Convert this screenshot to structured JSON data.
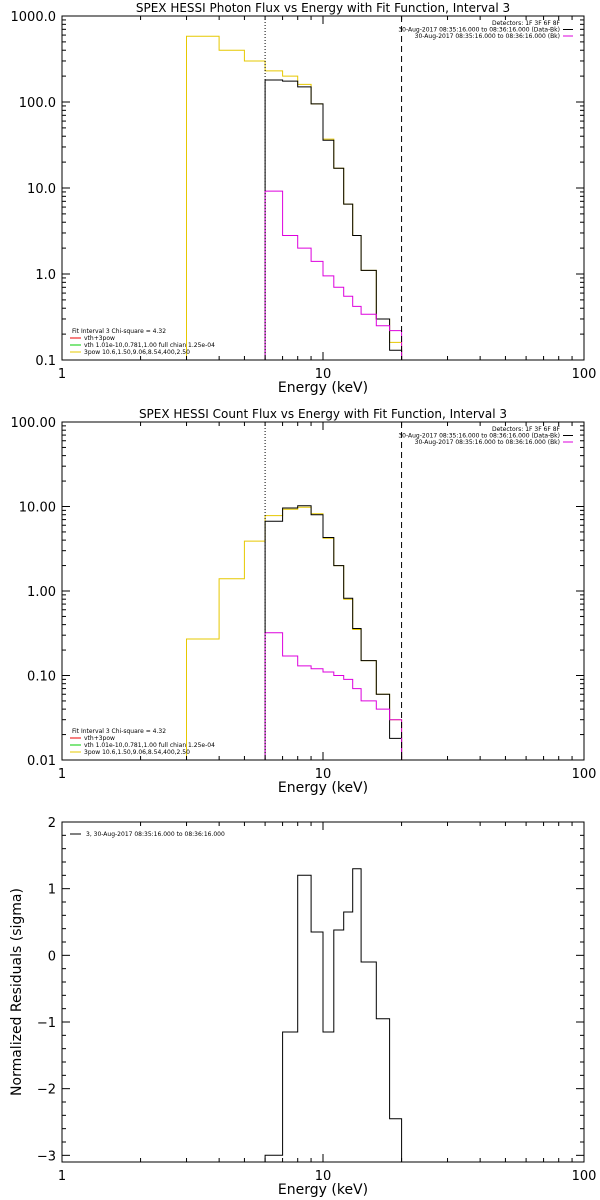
{
  "chart_data": [
    {
      "type": "line",
      "title": "SPEX HESSI Photon Flux vs Energy with Fit Function, Interval 3",
      "xlabel": "Energy (keV)",
      "ylabel": "",
      "xscale": "log",
      "yscale": "log",
      "xlim": [
        1,
        100
      ],
      "ylim": [
        0.1,
        1000
      ],
      "x_ticks": [
        1,
        10,
        100
      ],
      "x_tick_labels": [
        "1",
        "10",
        "100"
      ],
      "y_ticks": [
        0.1,
        1,
        10,
        100,
        1000
      ],
      "y_tick_labels": [
        "0.1",
        "1.0",
        "10.0",
        "100.0",
        "1000.0"
      ],
      "vlines": [
        {
          "x": 6,
          "style": "dotted"
        },
        {
          "x": 20,
          "style": "dashed"
        }
      ],
      "legend_top_right": [
        {
          "text": "Detectors: 1F 3F 6F 8F",
          "color": ""
        },
        {
          "text": "30-Aug-2017 08:35:16.000 to 08:36:16.000 (Data-Bk)",
          "color": "#000000"
        },
        {
          "text": "30-Aug-2017 08:35:16.000 to 08:36:16.000 (Bk)",
          "color": "#dd00dd"
        }
      ],
      "legend_bottom_left": [
        {
          "text": "Fit Interval 3   Chi-square = 4.32",
          "color": ""
        },
        {
          "text": "vth+3pow",
          "color": "#ee0000"
        },
        {
          "text": "vth 1.01e-10,0.781,1.00  full chian 1.25e-04",
          "color": "#00cc00"
        },
        {
          "text": "3pow 10.6,1.50,9.06,8.54,400,2.50",
          "color": "#e6c800"
        }
      ],
      "series": [
        {
          "color": "#e6c800",
          "edges": [
            3,
            4,
            5,
            6,
            7,
            8,
            9,
            10,
            11,
            12,
            13,
            14,
            16,
            18,
            20
          ],
          "values": [
            580,
            400,
            300,
            230,
            200,
            160,
            95,
            37,
            17,
            6.5,
            2.8,
            1.1,
            0.3,
            0.16
          ]
        },
        {
          "color": "#000000",
          "edges": [
            6,
            7,
            8,
            9,
            10,
            11,
            12,
            13,
            14,
            16,
            18,
            20
          ],
          "values": [
            180,
            175,
            150,
            95,
            36,
            17,
            6.5,
            2.8,
            1.1,
            0.3,
            0.13
          ]
        },
        {
          "color": "#dd00dd",
          "edges": [
            6,
            7,
            8,
            9,
            10,
            11,
            12,
            13,
            14,
            16,
            18,
            20
          ],
          "values": [
            9.2,
            2.8,
            2.0,
            1.4,
            0.95,
            0.7,
            0.55,
            0.42,
            0.34,
            0.25,
            0.22
          ]
        }
      ]
    },
    {
      "type": "line",
      "title": "SPEX HESSI Count Flux vs Energy with Fit Function, Interval 3",
      "xlabel": "Energy (keV)",
      "ylabel": "",
      "xscale": "log",
      "yscale": "log",
      "xlim": [
        1,
        100
      ],
      "ylim": [
        0.01,
        100
      ],
      "x_ticks": [
        1,
        10,
        100
      ],
      "x_tick_labels": [
        "1",
        "10",
        "100"
      ],
      "y_ticks": [
        0.01,
        0.1,
        1,
        10,
        100
      ],
      "y_tick_labels": [
        "0.01",
        "0.10",
        "1.00",
        "10.00",
        "100.00"
      ],
      "vlines": [
        {
          "x": 6,
          "style": "dotted"
        },
        {
          "x": 20,
          "style": "dashed"
        }
      ],
      "legend_top_right": [
        {
          "text": "Detectors: 1F 3F 6F 8F",
          "color": ""
        },
        {
          "text": "30-Aug-2017 08:35:16.000 to 08:36:16.000 (Data-Bk)",
          "color": "#000000"
        },
        {
          "text": "30-Aug-2017 08:35:16.000 to 08:36:16.000 (Bk)",
          "color": "#dd00dd"
        }
      ],
      "legend_bottom_left": [
        {
          "text": "Fit Interval 3   Chi-square = 4.32",
          "color": ""
        },
        {
          "text": "vth+3pow",
          "color": "#ee0000"
        },
        {
          "text": "vth 1.01e-10,0.781,1.00  full chian 1.25e-04",
          "color": "#00cc00"
        },
        {
          "text": "3pow 10.6,1.50,9.06,8.54,400,2.50",
          "color": "#e6c800"
        }
      ],
      "series": [
        {
          "color": "#e6c800",
          "edges": [
            3,
            4,
            5,
            6,
            7,
            8,
            9,
            10,
            11,
            12,
            13,
            14,
            16,
            18,
            20,
            22
          ],
          "values": [
            0.27,
            1.4,
            3.9,
            7.8,
            9.3,
            9.8,
            8.2,
            4.2,
            2.0,
            0.8,
            0.35,
            0.15,
            0.06,
            0.03,
            0.01
          ]
        },
        {
          "color": "#000000",
          "edges": [
            6,
            7,
            8,
            9,
            10,
            11,
            12,
            13,
            14,
            16,
            18,
            20
          ],
          "values": [
            6.7,
            9.6,
            10.2,
            8.0,
            4.3,
            2.0,
            0.82,
            0.36,
            0.15,
            0.06,
            0.018
          ]
        },
        {
          "color": "#dd00dd",
          "edges": [
            6,
            7,
            8,
            9,
            10,
            11,
            12,
            13,
            14,
            16,
            18,
            20
          ],
          "values": [
            0.32,
            0.17,
            0.13,
            0.12,
            0.11,
            0.1,
            0.09,
            0.07,
            0.05,
            0.04,
            0.03
          ]
        }
      ]
    },
    {
      "type": "line",
      "title": "",
      "xlabel": "Energy (keV)",
      "ylabel": "Normalized Residuals (sigma)",
      "xscale": "log",
      "yscale": "linear",
      "xlim": [
        1,
        100
      ],
      "ylim": [
        -3.1,
        2
      ],
      "x_ticks": [
        1,
        10,
        100
      ],
      "x_tick_labels": [
        "1",
        "10",
        "100"
      ],
      "y_ticks": [
        -3,
        -2,
        -1,
        0,
        1,
        2
      ],
      "y_tick_labels": [
        "−3",
        "−2",
        "−1",
        "0",
        "1",
        "2"
      ],
      "legend_top_left": [
        {
          "text": "3, 30-Aug-2017 08:35:16.000 to 08:36:16.000",
          "color": "#000000"
        }
      ],
      "series": [
        {
          "color": "#000000",
          "edges": [
            6,
            7,
            8,
            9,
            10,
            11,
            12,
            13,
            14,
            16,
            18,
            20
          ],
          "values": [
            -3.0,
            -1.15,
            1.2,
            0.35,
            -1.15,
            0.38,
            0.65,
            1.3,
            -0.1,
            -0.95,
            -2.45
          ]
        }
      ]
    }
  ]
}
